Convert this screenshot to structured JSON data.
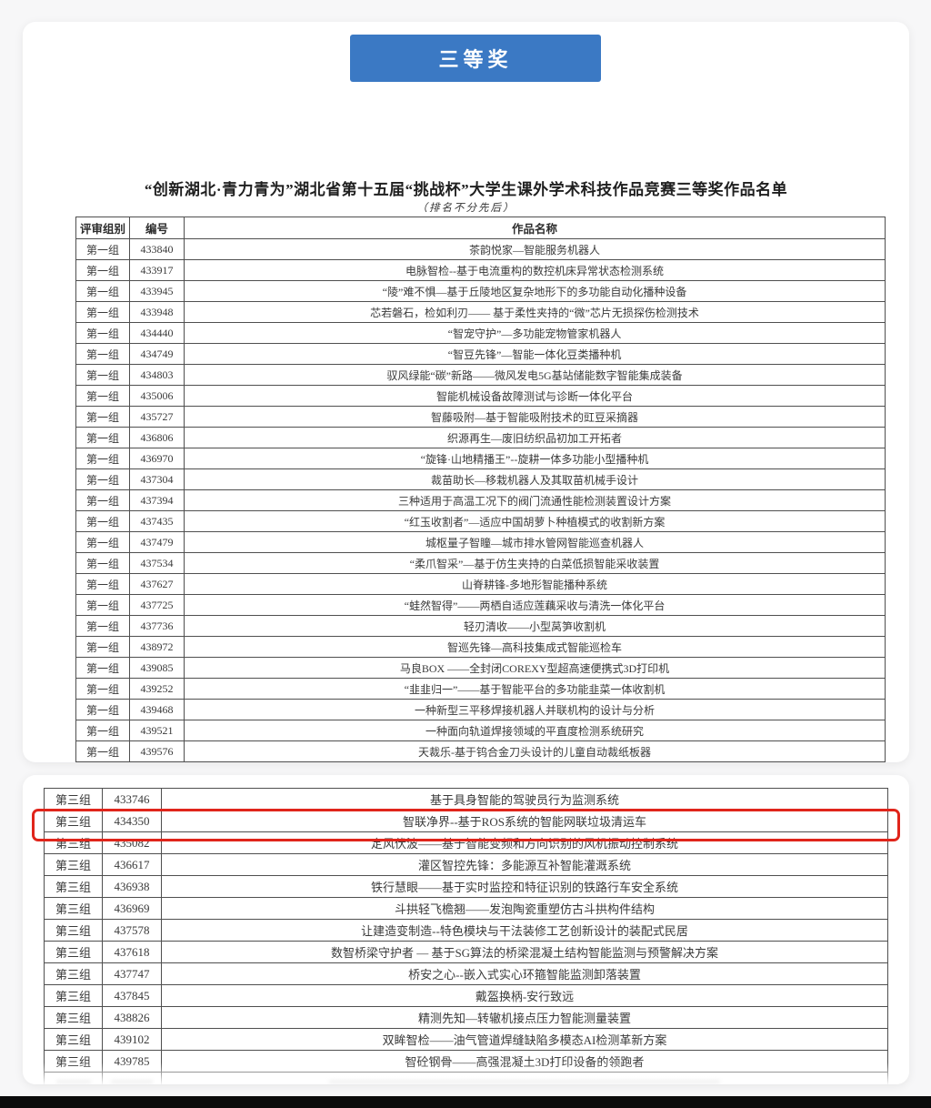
{
  "banner": {
    "label": "三等奖",
    "bg_color": "#3b79c4"
  },
  "title": "“创新湖北·青力青为”湖北省第十五届“挑战杯”大学生课外学术科技作品竞赛三等奖作品名单",
  "subtitle": "（排名不分先后）",
  "colors": {
    "highlight_border": "#e0251b",
    "table_border": "#4f4f4f",
    "page_background": "#f7f7f8",
    "bottom_bar": "#0b0b0b"
  },
  "table1": {
    "headers": [
      "评审组别",
      "编号",
      "作品名称"
    ],
    "rows": [
      {
        "group": "第一组",
        "id": "433840",
        "title": "茶韵悦家—智能服务机器人"
      },
      {
        "group": "第一组",
        "id": "433917",
        "title": "电脉智检--基于电流重构的数控机床异常状态检测系统"
      },
      {
        "group": "第一组",
        "id": "433945",
        "title": "“陵”难不惧—基于丘陵地区复杂地形下的多功能自动化播种设备"
      },
      {
        "group": "第一组",
        "id": "433948",
        "title": "芯若磐石，检如利刃—— 基于柔性夹持的“微”芯片无损探伤检测技术"
      },
      {
        "group": "第一组",
        "id": "434440",
        "title": "“智宠守护”—多功能宠物管家机器人"
      },
      {
        "group": "第一组",
        "id": "434749",
        "title": "“智豆先锋”—智能一体化豆类播种机"
      },
      {
        "group": "第一组",
        "id": "434803",
        "title": "驭风绿能“碳”新路——微风发电5G基站储能数字智能集成装备"
      },
      {
        "group": "第一组",
        "id": "435006",
        "title": "智能机械设备故障测试与诊断一体化平台"
      },
      {
        "group": "第一组",
        "id": "435727",
        "title": "智藤吸附—基于智能吸附技术的豇豆采摘器"
      },
      {
        "group": "第一组",
        "id": "436806",
        "title": "织源再生—废旧纺织品初加工开拓者"
      },
      {
        "group": "第一组",
        "id": "436970",
        "title": "“旋锋·山地精播王”--旋耕一体多功能小型播种机"
      },
      {
        "group": "第一组",
        "id": "437304",
        "title": "裁苗助长—移栽机器人及其取苗机械手设计"
      },
      {
        "group": "第一组",
        "id": "437394",
        "title": "三种适用于高温工况下的阀门流通性能检测装置设计方案"
      },
      {
        "group": "第一组",
        "id": "437435",
        "title": "“红玉收割者”—适应中国胡萝卜种植模式的收割新方案"
      },
      {
        "group": "第一组",
        "id": "437479",
        "title": "城枢量子智瞳—城市排水管网智能巡查机器人"
      },
      {
        "group": "第一组",
        "id": "437534",
        "title": "“柔爪智采”—基于仿生夹持的白菜低损智能采收装置"
      },
      {
        "group": "第一组",
        "id": "437627",
        "title": "山脊耕锋-多地形智能播种系统"
      },
      {
        "group": "第一组",
        "id": "437725",
        "title": "“蛙然智得”——两栖自适应莲藕采收与清洗一体化平台"
      },
      {
        "group": "第一组",
        "id": "437736",
        "title": "轻刃清收——小型莴笋收割机"
      },
      {
        "group": "第一组",
        "id": "438972",
        "title": "智巡先锋—高科技集成式智能巡检车"
      },
      {
        "group": "第一组",
        "id": "439085",
        "title": "马良BOX ——全封闭COREXY型超高速便携式3D打印机"
      },
      {
        "group": "第一组",
        "id": "439252",
        "title": "“韭韭归一”——基于智能平台的多功能韭菜一体收割机"
      },
      {
        "group": "第一组",
        "id": "439468",
        "title": "一种新型三平移焊接机器人并联机构的设计与分析"
      },
      {
        "group": "第一组",
        "id": "439521",
        "title": "一种面向轨道焊接领域的平直度检测系统研究"
      },
      {
        "group": "第一组",
        "id": "439576",
        "title": "天裁乐-基于钨合金刀头设计的儿童自动裁纸板器"
      }
    ]
  },
  "table2": {
    "highlighted_id": "434350",
    "partial_row_visible": true,
    "rows": [
      {
        "group": "第三组",
        "id": "433746",
        "title": "基于具身智能的驾驶员行为监测系统"
      },
      {
        "group": "第三组",
        "id": "434350",
        "title": "智联净界--基于ROS系统的智能网联垃圾清运车"
      },
      {
        "group": "第三组",
        "id": "435082",
        "title": "定风伏波——基于智能变频和方向识别的风机振动控制系统"
      },
      {
        "group": "第三组",
        "id": "436617",
        "title": "灌区智控先锋：多能源互补智能灌溉系统"
      },
      {
        "group": "第三组",
        "id": "436938",
        "title": "铁行慧眼——基于实时监控和特征识别的铁路行车安全系统"
      },
      {
        "group": "第三组",
        "id": "436969",
        "title": "斗拱轻飞檐翘——发泡陶瓷重塑仿古斗拱构件结构"
      },
      {
        "group": "第三组",
        "id": "437578",
        "title": "让建造变制造--特色模块与干法装修工艺创新设计的装配式民居"
      },
      {
        "group": "第三组",
        "id": "437618",
        "title": "数智桥梁守护者 — 基于SG算法的桥梁混凝土结构智能监测与预警解决方案"
      },
      {
        "group": "第三组",
        "id": "437747",
        "title": "桥安之心--嵌入式实心环箍智能监测卸落装置"
      },
      {
        "group": "第三组",
        "id": "437845",
        "title": "戴盔换柄-安行致远"
      },
      {
        "group": "第三组",
        "id": "438826",
        "title": "精测先知—转辙机接点压力智能测量装置"
      },
      {
        "group": "第三组",
        "id": "439102",
        "title": "双眸智检——油气管道焊缝缺陷多模态AI检测革新方案"
      },
      {
        "group": "第三组",
        "id": "439785",
        "title": "智砼钢骨——高强混凝土3D打印设备的领跑者"
      }
    ]
  }
}
